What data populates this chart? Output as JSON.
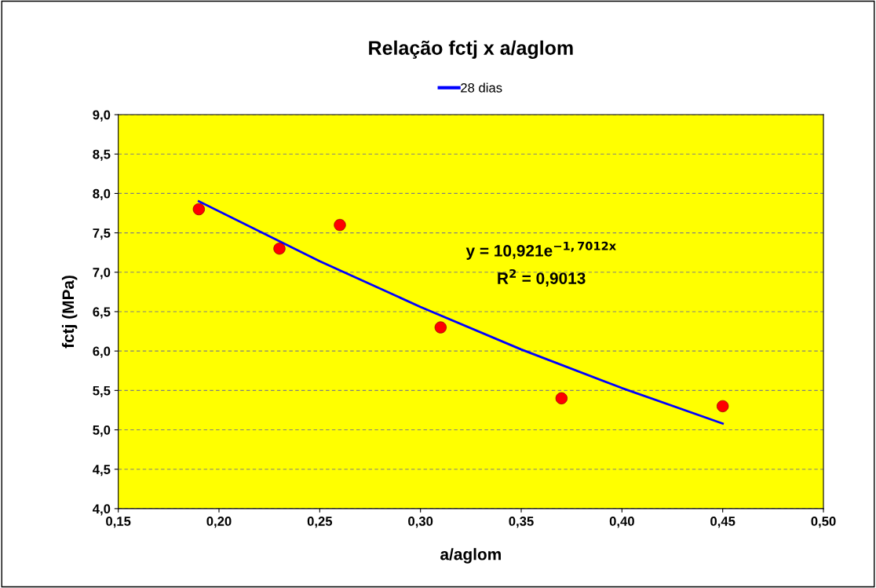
{
  "chart_data": {
    "type": "scatter",
    "title": "Relação fctj x a/aglom",
    "xlabel": "a/aglom",
    "ylabel": "fctj (MPa)",
    "series": [
      {
        "marker": "circle",
        "color": "#ff0000",
        "x": [
          0.19,
          0.23,
          0.26,
          0.31,
          0.37,
          0.45
        ],
        "values": [
          7.8,
          7.3,
          7.6,
          6.3,
          5.4,
          5.3
        ]
      },
      {
        "type": "line",
        "name": "28 dias",
        "color": "#0000ff",
        "x": [
          0.19,
          0.25,
          0.3,
          0.35,
          0.4,
          0.45
        ],
        "values": [
          7.9,
          7.14,
          6.56,
          6.02,
          5.53,
          5.08
        ]
      }
    ],
    "annotations": [
      "y = 10,921e$^{−1,7012x}$",
      "R$^{2}$ = 0,9013"
    ],
    "xlim": [
      0.15,
      0.5
    ],
    "ylim": [
      4.0,
      9.0
    ],
    "xticks": [
      {
        "value": 0.15,
        "label": "0,15"
      },
      {
        "value": 0.2,
        "label": "0,20"
      },
      {
        "value": 0.25,
        "label": "0,25"
      },
      {
        "value": 0.3,
        "label": "0,30"
      },
      {
        "value": 0.35,
        "label": "0,35"
      },
      {
        "value": 0.4,
        "label": "0,40"
      },
      {
        "value": 0.45,
        "label": "0,45"
      },
      {
        "value": 0.5,
        "label": "0,50"
      }
    ],
    "yticks": [
      {
        "value": 4.0,
        "label": "4,0"
      },
      {
        "value": 4.5,
        "label": "4,5"
      },
      {
        "value": 5.0,
        "label": "5,0"
      },
      {
        "value": 5.5,
        "label": "5,5"
      },
      {
        "value": 6.0,
        "label": "6,0"
      },
      {
        "value": 6.5,
        "label": "6,5"
      },
      {
        "value": 7.0,
        "label": "7,0"
      },
      {
        "value": 7.5,
        "label": "7,5"
      },
      {
        "value": 8.0,
        "label": "8,0"
      },
      {
        "value": 8.5,
        "label": "8,5"
      },
      {
        "value": 9.0,
        "label": "9,0"
      }
    ],
    "grid": "y",
    "legend": "top"
  }
}
